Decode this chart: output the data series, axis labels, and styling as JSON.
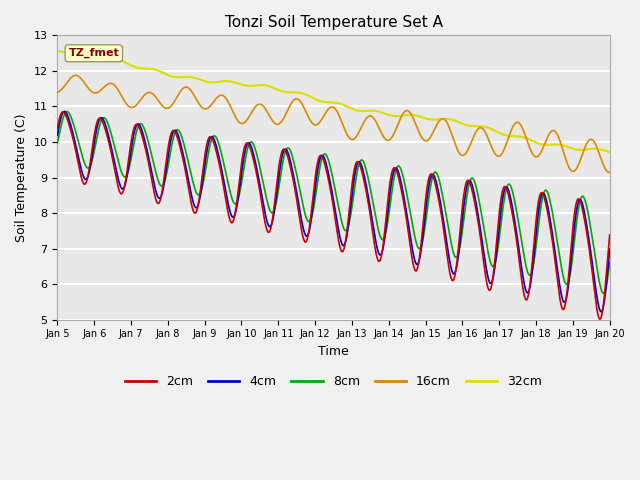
{
  "title": "Tonzi Soil Temperature Set A",
  "xlabel": "Time",
  "ylabel": "Soil Temperature (C)",
  "ylim": [
    5.0,
    13.0
  ],
  "yticks": [
    5.0,
    6.0,
    7.0,
    8.0,
    9.0,
    10.0,
    11.0,
    12.0,
    13.0
  ],
  "xtick_labels": [
    "Jan 5",
    "Jan 6",
    "Jan 7",
    "Jan 8",
    "Jan 9",
    "Jan 10",
    "Jan 11",
    "Jan 12",
    "Jan 13",
    "Jan 14",
    "Jan 15",
    "Jan 16",
    "Jan 17",
    "Jan 18",
    "Jan 19",
    "Jan 20"
  ],
  "colors": {
    "2cm": "#cc0000",
    "4cm": "#0000cc",
    "8cm": "#00aa00",
    "16cm": "#dd8800",
    "32cm": "#dddd00"
  },
  "annotation_text": "TZ_fmet",
  "annotation_color": "#880000",
  "annotation_bg": "#ffffcc",
  "plot_bg": "#e8e8e8",
  "fig_bg": "#f0f0f0"
}
